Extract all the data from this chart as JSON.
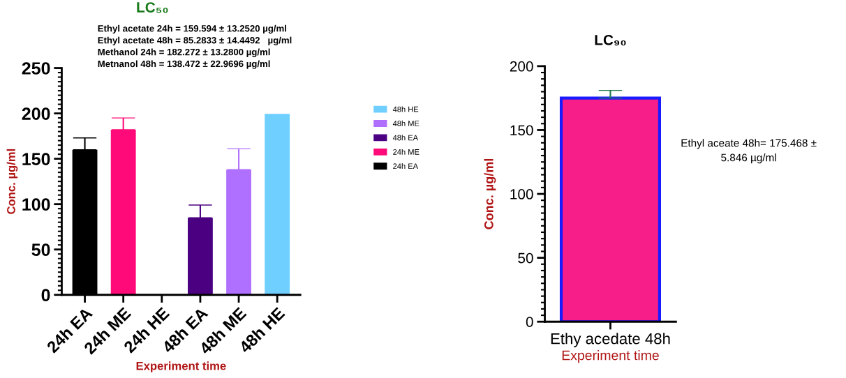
{
  "chart_data": [
    {
      "type": "bar",
      "title": "LC₅₀",
      "ylabel": "Conc. µg/ml",
      "xlabel": "Experiment time",
      "categories": [
        "24h EA",
        "24h ME",
        "24h HE",
        "48h EA",
        "48h ME",
        "48h HE"
      ],
      "series": [
        {
          "name": "24h EA",
          "color": "#000000",
          "values": [
            160,
            null,
            null,
            null,
            null,
            null
          ],
          "errors": [
            13,
            null,
            null,
            null,
            null,
            null
          ]
        },
        {
          "name": "24h ME",
          "color": "#ff0a78",
          "values": [
            null,
            182,
            null,
            null,
            null,
            null
          ],
          "errors": [
            null,
            13,
            null,
            null,
            null,
            null
          ]
        },
        {
          "name": "48h EA",
          "color": "#4b0082",
          "values": [
            null,
            null,
            null,
            85,
            null,
            null
          ],
          "errors": [
            null,
            null,
            null,
            14,
            null,
            null
          ]
        },
        {
          "name": "48h ME",
          "color": "#b070ff",
          "values": [
            null,
            null,
            null,
            null,
            138,
            null
          ],
          "errors": [
            null,
            null,
            null,
            null,
            23,
            null
          ]
        },
        {
          "name": "48h HE",
          "color": "#6fcfff",
          "values": [
            null,
            null,
            null,
            null,
            null,
            199.5
          ]
        }
      ],
      "ylim": [
        0,
        250
      ],
      "yticks": [
        0,
        50,
        100,
        150,
        200,
        250
      ],
      "legend": "right",
      "grid": false,
      "annotations": [
        "Ethyl acetate 24h = 159.594 ± 13.2520 µg/ml",
        "Ethyl acetate 48h = 85.2833 ± 14.4492   µg/ml",
        "Methanol 24h = 182.272 ± 13.2800 µg/ml",
        "Metnanol 48h = 138.472 ± 22.9696 µg/ml"
      ]
    },
    {
      "type": "bar",
      "title": "LC₉₀",
      "ylabel": "Conc. µg/ml",
      "xlabel": "Experiment time",
      "categories": [
        "Ethy acedate 48h"
      ],
      "series": [
        {
          "color": "#f71e8a",
          "values": [
            175
          ],
          "errors": [
            6
          ]
        }
      ],
      "ylim": [
        0,
        200
      ],
      "yticks": [
        0,
        50,
        100,
        150,
        200
      ],
      "grid": false,
      "annotations": [
        "Ethyl aceate 48h= 175.468 ±\n5.846 µg/ml"
      ]
    }
  ]
}
